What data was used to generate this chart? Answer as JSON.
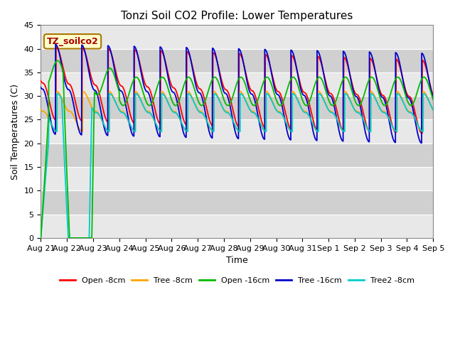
{
  "title": "Tonzi Soil CO2 Profile: Lower Temperatures",
  "xlabel": "Time",
  "ylabel": "Soil Temperatures (C)",
  "ylim": [
    0,
    45
  ],
  "n_days": 15,
  "ppd": 288,
  "background_color": "#ffffff",
  "annotation_text": "TZ_soilco2",
  "annotation_bg": "#ffffcc",
  "annotation_border": "#aa7700",
  "series": {
    "open_8cm": {
      "color": "#ff0000",
      "label": "Open -8cm",
      "base": 31.5,
      "amp": 9.5,
      "phase": 0.0,
      "trough_base": 23.0
    },
    "tree_8cm": {
      "color": "#ffa500",
      "label": "Tree -8cm",
      "base": 27.0,
      "amp": 5.0,
      "phase": 0.05,
      "trough_base": 22.5
    },
    "open_16cm": {
      "color": "#00bb00",
      "label": "Open -16cm",
      "base": 31.5,
      "amp": 2.5,
      "phase": -0.15,
      "trough_base": 29.0
    },
    "tree_16cm": {
      "color": "#0000cc",
      "label": "Tree -16cm",
      "base": 31.5,
      "amp": 9.5,
      "phase": 0.1,
      "trough_base": 22.0
    },
    "tree2_8cm": {
      "color": "#00cccc",
      "label": "Tree2 -8cm",
      "base": 27.0,
      "amp": 4.5,
      "phase": 0.03,
      "trough_base": 22.5
    }
  },
  "tick_labels": [
    "Aug 21",
    "Aug 22",
    "Aug 23",
    "Aug 24",
    "Aug 25",
    "Aug 26",
    "Aug 27",
    "Aug 28",
    "Aug 29",
    "Aug 30",
    "Aug 31",
    "Sep 1",
    "Sep 2",
    "Sep 3",
    "Sep 4",
    "Sep 5"
  ],
  "band_colors_light": "#e8e8e8",
  "band_colors_dark": "#d0d0d0",
  "linewidth": 1.3
}
